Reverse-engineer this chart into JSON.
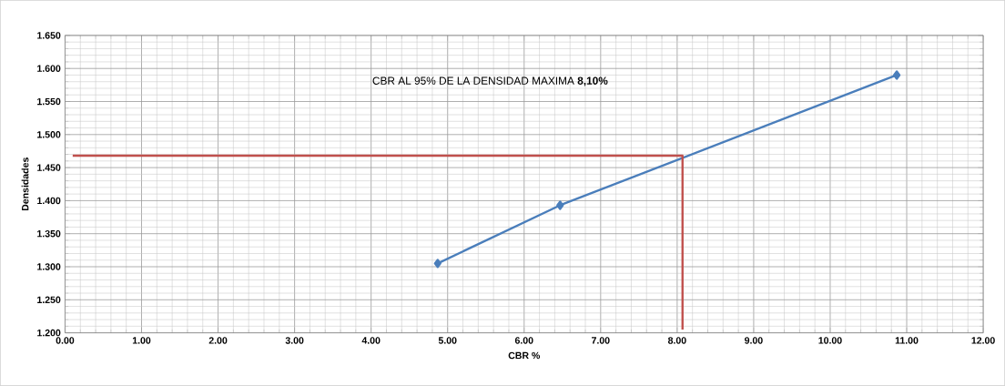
{
  "chart_data": {
    "type": "line",
    "xlabel": "CBR %",
    "ylabel": "Densidades",
    "annotations": [
      "CBR AL 95% DE LA DENSIDAD MAXIMA **8,10%**"
    ],
    "xlim": [
      0,
      12
    ],
    "ylim": [
      1.2,
      1.65
    ],
    "xticks": [
      {
        "value": 0,
        "label": "0.00"
      },
      {
        "value": 1,
        "label": "1.00"
      },
      {
        "value": 2,
        "label": "2.00"
      },
      {
        "value": 3,
        "label": "3.00"
      },
      {
        "value": 4,
        "label": "4.00"
      },
      {
        "value": 5,
        "label": "5.00"
      },
      {
        "value": 6,
        "label": "6.00"
      },
      {
        "value": 7,
        "label": "7.00"
      },
      {
        "value": 8,
        "label": "8.00"
      },
      {
        "value": 9,
        "label": "9.00"
      },
      {
        "value": 10,
        "label": "10.00"
      },
      {
        "value": 11,
        "label": "11.00"
      },
      {
        "value": 12,
        "label": "12.00"
      }
    ],
    "yticks": [
      {
        "value": 1.2,
        "label": "1.200"
      },
      {
        "value": 1.25,
        "label": "1.250"
      },
      {
        "value": 1.3,
        "label": "1.300"
      },
      {
        "value": 1.35,
        "label": "1.350"
      },
      {
        "value": 1.4,
        "label": "1.400"
      },
      {
        "value": 1.45,
        "label": "1.450"
      },
      {
        "value": 1.5,
        "label": "1.500"
      },
      {
        "value": 1.55,
        "label": "1.550"
      },
      {
        "value": 1.6,
        "label": "1.600"
      },
      {
        "value": 1.65,
        "label": "1.650"
      }
    ],
    "grid": true,
    "series": [
      {
        "color": "#4a7ebb",
        "marker": "diamond",
        "x": [
          4.87,
          6.47,
          10.87
        ],
        "values": [
          1.305,
          1.393,
          1.59
        ]
      },
      {
        "color": "#c0504d",
        "marker": "none",
        "x": [
          0.1,
          8.07,
          8.07
        ],
        "values": [
          1.468,
          1.468,
          1.205
        ]
      }
    ]
  }
}
